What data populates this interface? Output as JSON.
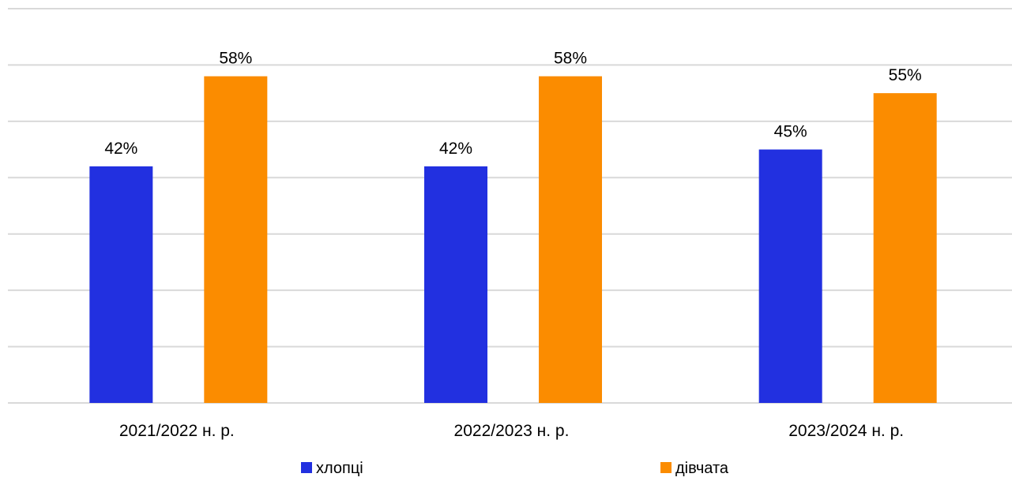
{
  "chart_data": {
    "type": "bar",
    "categories": [
      "2021/2022 н. р.",
      "2022/2023 н. р.",
      "2023/2024 н. р."
    ],
    "series": [
      {
        "name": "хлопці",
        "values": [
          42,
          42,
          45
        ],
        "labels": [
          "42%",
          "42%",
          "45%"
        ],
        "color": "#2230e0"
      },
      {
        "name": "дівчата",
        "values": [
          58,
          58,
          55
        ],
        "labels": [
          "58%",
          "58%",
          "55%"
        ],
        "color": "#fb8c00"
      }
    ],
    "ylim": [
      0,
      70
    ],
    "yticks_shown": false,
    "grid": true,
    "legend_position": "bottom"
  }
}
